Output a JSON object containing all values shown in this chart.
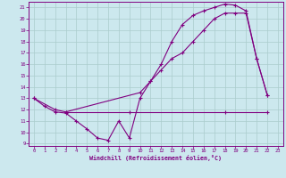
{
  "bg_color": "#cce8ee",
  "line_color": "#800080",
  "grid_color": "#aacccc",
  "xlabel": "Windchill (Refroidissement éolien,°C)",
  "ylim": [
    8.8,
    21.5
  ],
  "xlim": [
    -0.5,
    23.5
  ],
  "yticks": [
    9,
    10,
    11,
    12,
    13,
    14,
    15,
    16,
    17,
    18,
    19,
    20,
    21
  ],
  "xticks": [
    0,
    1,
    2,
    3,
    4,
    5,
    6,
    7,
    8,
    9,
    10,
    11,
    12,
    13,
    14,
    15,
    16,
    17,
    18,
    19,
    20,
    21,
    22,
    23
  ],
  "line1_x": [
    0,
    1,
    2,
    3,
    4,
    5,
    6,
    7,
    8,
    9,
    10,
    11,
    12,
    13,
    14,
    15,
    16,
    17,
    18,
    19,
    20,
    21,
    22
  ],
  "line1_y": [
    13,
    12.3,
    11.8,
    11.7,
    11.0,
    10.3,
    9.5,
    9.3,
    11.0,
    9.5,
    13.0,
    14.5,
    16.0,
    18.0,
    19.5,
    20.3,
    20.7,
    21.0,
    21.3,
    21.2,
    20.7,
    16.5,
    13.3
  ],
  "line2_x": [
    0,
    2,
    3,
    10,
    11,
    12,
    13,
    14,
    15,
    16,
    17,
    18,
    19,
    20,
    21,
    22
  ],
  "line2_y": [
    13,
    12.0,
    11.8,
    13.5,
    14.5,
    15.5,
    16.5,
    17.0,
    18.0,
    19.0,
    20.0,
    20.5,
    20.5,
    20.5,
    16.5,
    13.3
  ],
  "line3_x": [
    3,
    9,
    18,
    22
  ],
  "line3_y": [
    11.8,
    11.8,
    11.8,
    11.8
  ]
}
